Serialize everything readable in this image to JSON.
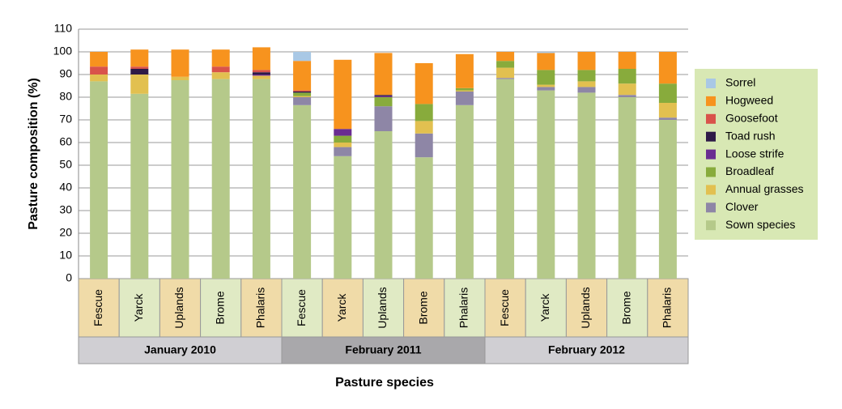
{
  "chart_data": {
    "type": "stacked-bar",
    "y_label": "Pasture composition (%)",
    "x_label": "Pasture species",
    "categories": [
      "Fescue",
      "Yarck",
      "Uplands",
      "Brome",
      "Phalaris",
      "Fescue",
      "Yarck",
      "Uplands",
      "Brome",
      "Phalaris",
      "Fescue",
      "Yarck",
      "Uplands",
      "Brome",
      "Phalaris"
    ],
    "groups": [
      "January 2010",
      "February 2011",
      "February 2012"
    ],
    "ylim": [
      0,
      110
    ],
    "yticks": [
      0,
      10,
      20,
      30,
      40,
      50,
      60,
      70,
      80,
      90,
      100,
      110
    ],
    "grid": true,
    "legend": "right",
    "series": [
      {
        "name": "Sown species",
        "color": "#b5c98a",
        "values": [
          87,
          81.5,
          87.5,
          88,
          88,
          76.5,
          54,
          65,
          53.5,
          76.5,
          88,
          83,
          82,
          80,
          70
        ]
      },
      {
        "name": "Clover",
        "color": "#8e86a6",
        "values": [
          0,
          0,
          0,
          0,
          0,
          3.5,
          4,
          11,
          10.5,
          6,
          0.5,
          1.5,
          2.5,
          1,
          1
        ]
      },
      {
        "name": "Annual grasses",
        "color": "#e2c050",
        "values": [
          3,
          8.5,
          1.5,
          3,
          1.5,
          0.5,
          2,
          0,
          5.5,
          0.5,
          4.5,
          1,
          2.5,
          5,
          6.5
        ]
      },
      {
        "name": "Broadleaf",
        "color": "#88ab3c",
        "values": [
          0,
          0,
          0,
          0,
          0,
          1.5,
          3,
          4,
          7.5,
          1,
          3,
          6.5,
          5,
          6.5,
          8.5
        ]
      },
      {
        "name": "Loose strife",
        "color": "#6a2d91",
        "values": [
          0,
          0,
          0,
          0,
          0.5,
          0,
          3,
          0.5,
          0,
          0,
          0,
          0,
          0,
          0,
          0
        ]
      },
      {
        "name": "Toad rush",
        "color": "#2e1a47",
        "values": [
          0,
          2.5,
          0,
          0,
          1,
          0.5,
          0,
          0.5,
          0,
          0,
          0,
          0,
          0,
          0,
          0
        ]
      },
      {
        "name": "Goosefoot",
        "color": "#d9534a",
        "values": [
          3.5,
          1,
          0,
          2.5,
          1,
          0.5,
          0,
          0,
          0,
          0,
          0,
          0,
          0,
          0,
          0
        ]
      },
      {
        "name": "Hogweed",
        "color": "#f7931e",
        "values": [
          6.5,
          7.5,
          12,
          7.5,
          10,
          13,
          30.5,
          18.5,
          18,
          15,
          4,
          7.5,
          8,
          7.5,
          14
        ]
      },
      {
        "name": "Sorrel",
        "color": "#a9c8e5",
        "values": [
          0,
          0,
          0,
          0,
          0,
          4,
          0,
          0,
          0,
          0,
          0,
          0.5,
          0,
          0,
          0
        ]
      }
    ]
  }
}
